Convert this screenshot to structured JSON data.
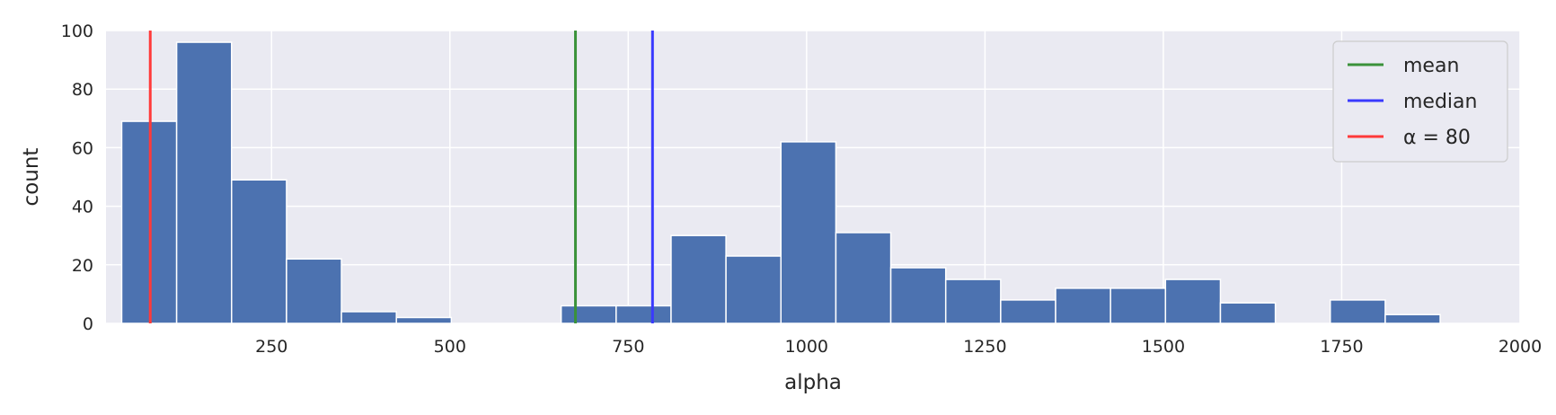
{
  "chart_data": {
    "type": "bar",
    "title": "",
    "xlabel": "alpha",
    "ylabel": "count",
    "xlim": [
      18,
      2000
    ],
    "ylim": [
      0,
      100
    ],
    "xticks": [
      250,
      500,
      750,
      1000,
      1250,
      1500,
      1750,
      2000
    ],
    "yticks": [
      0,
      20,
      40,
      60,
      80,
      100
    ],
    "grid": true,
    "bins": [
      {
        "x0": 40,
        "x1": 117,
        "count": 69
      },
      {
        "x0": 117,
        "x1": 194,
        "count": 96
      },
      {
        "x0": 194,
        "x1": 271,
        "count": 49
      },
      {
        "x0": 271,
        "x1": 348,
        "count": 22
      },
      {
        "x0": 348,
        "x1": 425,
        "count": 4
      },
      {
        "x0": 425,
        "x1": 502,
        "count": 2
      },
      {
        "x0": 502,
        "x1": 579,
        "count": 0
      },
      {
        "x0": 579,
        "x1": 656,
        "count": 0
      },
      {
        "x0": 656,
        "x1": 733,
        "count": 6
      },
      {
        "x0": 733,
        "x1": 810,
        "count": 6
      },
      {
        "x0": 810,
        "x1": 887,
        "count": 30
      },
      {
        "x0": 887,
        "x1": 964,
        "count": 23
      },
      {
        "x0": 964,
        "x1": 1041,
        "count": 62
      },
      {
        "x0": 1041,
        "x1": 1118,
        "count": 31
      },
      {
        "x0": 1118,
        "x1": 1195,
        "count": 19
      },
      {
        "x0": 1195,
        "x1": 1272,
        "count": 15
      },
      {
        "x0": 1272,
        "x1": 1349,
        "count": 8
      },
      {
        "x0": 1349,
        "x1": 1426,
        "count": 12
      },
      {
        "x0": 1426,
        "x1": 1503,
        "count": 12
      },
      {
        "x0": 1503,
        "x1": 1580,
        "count": 15
      },
      {
        "x0": 1580,
        "x1": 1657,
        "count": 7
      },
      {
        "x0": 1657,
        "x1": 1734,
        "count": 0
      },
      {
        "x0": 1734,
        "x1": 1811,
        "count": 8
      },
      {
        "x0": 1811,
        "x1": 1888,
        "count": 3
      }
    ],
    "bar_color": "#4c72b0",
    "background_color": "#eaeaf2",
    "vlines": [
      {
        "name": "mean",
        "x": 676,
        "color": "#3a923a"
      },
      {
        "name": "median",
        "x": 784,
        "color": "#3a3aff"
      },
      {
        "name": "α = 80",
        "x": 80,
        "color": "#ff3a3a"
      }
    ],
    "legend": {
      "placement": "top-right",
      "entries": [
        "mean",
        "median",
        "α = 80"
      ]
    }
  }
}
